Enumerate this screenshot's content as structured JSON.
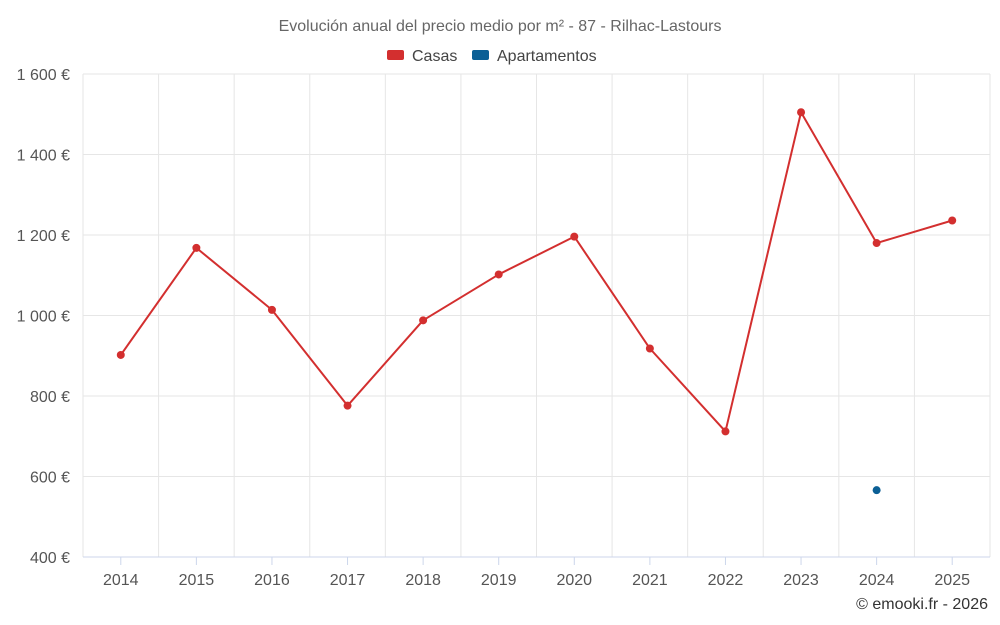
{
  "chart_data": {
    "type": "line",
    "title": "Evolución anual del precio medio por m² - 87 - Rilhac-Lastours",
    "categories": [
      "2014",
      "2015",
      "2016",
      "2017",
      "2018",
      "2019",
      "2020",
      "2021",
      "2022",
      "2023",
      "2024",
      "2025"
    ],
    "series": [
      {
        "name": "Casas",
        "color": "#d32f2f",
        "values": [
          902,
          1168,
          1014,
          776,
          988,
          1102,
          1196,
          918,
          712,
          1505,
          1180,
          1236
        ]
      },
      {
        "name": "Apartamentos",
        "color": "#0b5f95",
        "values": [
          null,
          null,
          null,
          null,
          null,
          null,
          null,
          null,
          null,
          null,
          566,
          null
        ]
      }
    ],
    "ylim": [
      400,
      1600
    ],
    "yticks": [
      400,
      600,
      800,
      1000,
      1200,
      1400,
      1600
    ],
    "ytick_labels": [
      "400 €",
      "600 €",
      "800 €",
      "1 000 €",
      "1 200 €",
      "1 400 €",
      "1 600 €"
    ],
    "xlabel": "",
    "ylabel": "",
    "grid": true,
    "legend_position": "top-center"
  },
  "credit": "© emooki.fr - 2026"
}
